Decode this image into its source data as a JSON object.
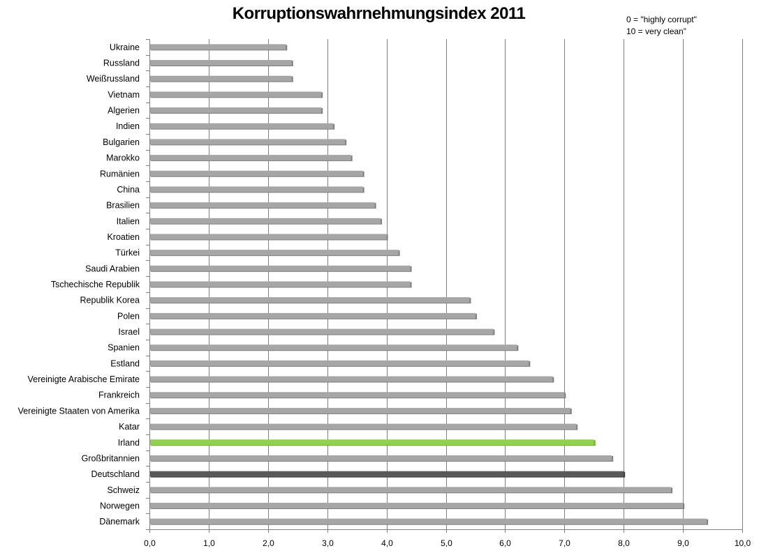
{
  "chart_data": {
    "type": "bar",
    "orientation": "horizontal",
    "title": "Korruptionswahrnehmungsindex 2011",
    "annotation": [
      "0 = \"highly corrupt\"",
      "10 = very clean”"
    ],
    "categories": [
      "Ukraine",
      "Russland",
      "Weißrussland",
      "Vietnam",
      "Algerien",
      "Indien",
      "Bulgarien",
      "Marokko",
      "Rumänien",
      "China",
      "Brasilien",
      "Italien",
      "Kroatien",
      "Türkei",
      "Saudi Arabien",
      "Tschechische Republik",
      "Republik Korea",
      "Polen",
      "Israel",
      "Spanien",
      "Estland",
      "Vereinigte Arabische Emirate",
      "Frankreich",
      "Vereinigte Staaten von Amerika",
      "Katar",
      "Irland",
      "Großbritannien",
      "Deutschland",
      "Schweiz",
      "Norwegen",
      "Dänemark"
    ],
    "values": [
      2.3,
      2.4,
      2.4,
      2.9,
      2.9,
      3.1,
      3.3,
      3.4,
      3.6,
      3.6,
      3.8,
      3.9,
      4.0,
      4.2,
      4.4,
      4.4,
      5.4,
      5.5,
      5.8,
      6.2,
      6.4,
      6.8,
      7.0,
      7.1,
      7.2,
      7.5,
      7.8,
      8.0,
      8.8,
      9.0,
      9.4
    ],
    "xlim": [
      0,
      10
    ],
    "xticks": [
      "0,0",
      "1,0",
      "2,0",
      "3,0",
      "4,0",
      "5,0",
      "6,0",
      "7,0",
      "8,0",
      "9,0",
      "10,0"
    ],
    "grid": "vertical",
    "colors": {
      "default_bar": "#a6a6a6",
      "default_bar_shadow": "#7f7f7f",
      "highlight_irland": "#92d050",
      "highlight_irland_shadow": "#76a83a",
      "highlight_deutschland": "#595959",
      "highlight_deutschland_shadow": "#3a3a3a",
      "gridline": "#808080",
      "axis": "#808080"
    },
    "highlights": {
      "Irland": "highlight_irland",
      "Deutschland": "highlight_deutschland"
    }
  }
}
